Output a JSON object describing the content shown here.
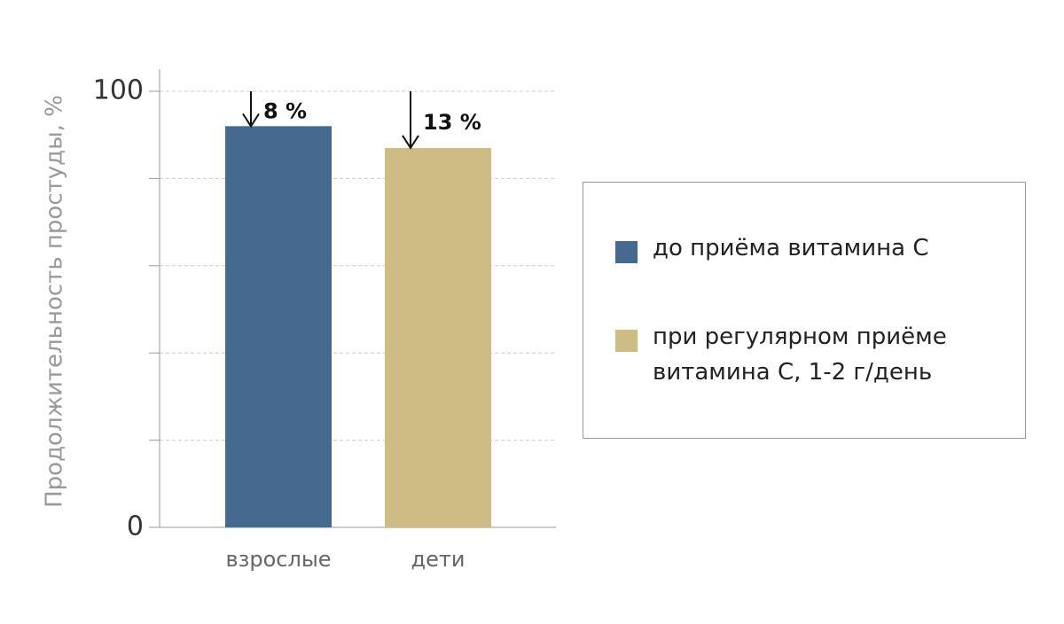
{
  "chart_data": {
    "type": "bar",
    "ylabel": "Продолжительность простуды, %",
    "categories": [
      "взрослые",
      "дети"
    ],
    "values": [
      92,
      87
    ],
    "colors": [
      "#466a8f",
      "#cdbc83"
    ],
    "ylim": [
      0,
      100
    ],
    "yticks": [
      0,
      100
    ],
    "minor_yticks": [
      20,
      40,
      60,
      80
    ],
    "grid": true,
    "annotations": [
      {
        "value": 8,
        "label": "8 %"
      },
      {
        "value": 13,
        "label": "13 %"
      }
    ],
    "legend": [
      {
        "name": "до приёма витамина С",
        "color": "#466a8f"
      },
      {
        "name": "при регулярном приёме витамина С, 1-2 г/день",
        "color": "#cdbc83"
      }
    ]
  }
}
